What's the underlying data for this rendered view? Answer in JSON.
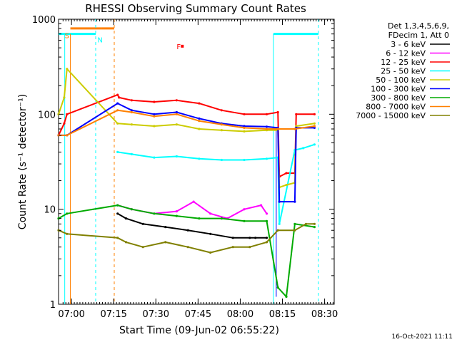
{
  "chart_data": {
    "type": "line",
    "title": "RHESSI Observing Summary Count Rates",
    "xlabel": "Start Time (09-Jun-02 06:55:22)",
    "ylabel": "Count Rate (s⁻¹ detector⁻¹)",
    "ylim": [
      1,
      1000
    ],
    "y_scale": "log",
    "x_range_minutes": [
      0,
      98
    ],
    "x_ticks": [
      {
        "label": "07:00",
        "value": 4.6
      },
      {
        "label": "07:15",
        "value": 19.6
      },
      {
        "label": "07:30",
        "value": 34.6
      },
      {
        "label": "07:45",
        "value": 49.6
      },
      {
        "label": "08:00",
        "value": 64.6
      },
      {
        "label": "08:15",
        "value": 79.6
      },
      {
        "label": "08:30",
        "value": 94.6
      }
    ],
    "y_ticks": [
      {
        "label": "1",
        "value": 1
      },
      {
        "label": "10",
        "value": 10
      },
      {
        "label": "100",
        "value": 100
      },
      {
        "label": "1000",
        "value": 1000
      }
    ],
    "legend_header": [
      "Det 1,3,4,5,6,9,",
      "FDecim 1, Att 0"
    ],
    "legend_position": "right",
    "series": [
      {
        "name": "3 - 6 keV",
        "color": "#000000",
        "x": [
          21,
          24,
          30,
          38,
          46,
          54,
          62,
          68,
          70,
          74
        ],
        "y": [
          9,
          8,
          7,
          6.5,
          6,
          5.5,
          5,
          5,
          5,
          5
        ]
      },
      {
        "name": "6 - 12 keV",
        "color": "#ff00ff",
        "x": [
          21,
          26,
          34,
          42,
          48,
          54,
          60,
          66,
          72,
          74
        ],
        "y": [
          11,
          10,
          9,
          9.5,
          12,
          9,
          8,
          10,
          11,
          9
        ]
      },
      {
        "name": "12 - 25 keV",
        "color": "#ff0000",
        "x": [
          0,
          2,
          3,
          21,
          21.5,
          26,
          34,
          42,
          50,
          58,
          66,
          74,
          78,
          78.5,
          81,
          84,
          84.5,
          91
        ],
        "y": [
          60,
          80,
          100,
          160,
          150,
          140,
          135,
          140,
          130,
          110,
          100,
          100,
          105,
          22,
          24,
          24,
          100,
          100
        ]
      },
      {
        "name": "25 - 50 keV",
        "color": "#00ffff",
        "x": [
          21,
          26,
          34,
          42,
          50,
          58,
          66,
          74,
          78,
          78.5,
          84,
          87,
          91
        ],
        "y": [
          40,
          38,
          35,
          36,
          34,
          33,
          33,
          34,
          35,
          7,
          42,
          44,
          48
        ]
      },
      {
        "name": "50 - 100 keV",
        "color": "#cccc00",
        "x": [
          0,
          2,
          3,
          21,
          26,
          34,
          42,
          50,
          58,
          66,
          74,
          78,
          78.5,
          81,
          84,
          84.5,
          91
        ],
        "y": [
          100,
          150,
          300,
          80,
          78,
          75,
          78,
          70,
          68,
          66,
          68,
          68,
          17,
          18,
          19,
          75,
          80
        ]
      },
      {
        "name": "100 - 300 keV",
        "color": "#0000ff",
        "x": [
          0,
          3,
          21,
          26,
          34,
          42,
          50,
          58,
          66,
          74,
          78,
          78.5,
          84,
          84.5,
          91
        ],
        "y": [
          60,
          60,
          130,
          110,
          100,
          105,
          90,
          80,
          75,
          74,
          72,
          12,
          12,
          72,
          72
        ]
      },
      {
        "name": "300 - 800 keV",
        "color": "#00aa00",
        "x": [
          0,
          3,
          21,
          26,
          34,
          42,
          50,
          58,
          66,
          74,
          78,
          81,
          84,
          91
        ],
        "y": [
          8,
          9,
          11,
          10,
          9,
          8.5,
          8,
          8,
          7.5,
          7.5,
          1.5,
          1.2,
          7,
          6.5
        ]
      },
      {
        "name": "800 - 7000 keV",
        "color": "#ff8000",
        "x": [
          0,
          3,
          21,
          26,
          34,
          42,
          50,
          58,
          66,
          74,
          78,
          84,
          91
        ],
        "y": [
          60,
          60,
          110,
          105,
          95,
          100,
          85,
          78,
          72,
          70,
          70,
          70,
          75
        ]
      },
      {
        "name": "7000 - 15000 keV",
        "color": "#808000",
        "x": [
          0,
          3,
          21,
          24,
          30,
          38,
          46,
          54,
          62,
          68,
          74,
          78,
          84,
          88,
          91
        ],
        "y": [
          6,
          5.5,
          5,
          4.5,
          4,
          4.5,
          4,
          3.5,
          4,
          4,
          4.5,
          6,
          6,
          7,
          7
        ]
      }
    ],
    "annotations": [
      {
        "text": "S",
        "color": "#ff8000"
      },
      {
        "text": "N",
        "color": "#00ffff"
      },
      {
        "text": "F",
        "color": "#ff0000"
      }
    ],
    "footer_timestamp": "16-Oct-2021 11:11"
  }
}
